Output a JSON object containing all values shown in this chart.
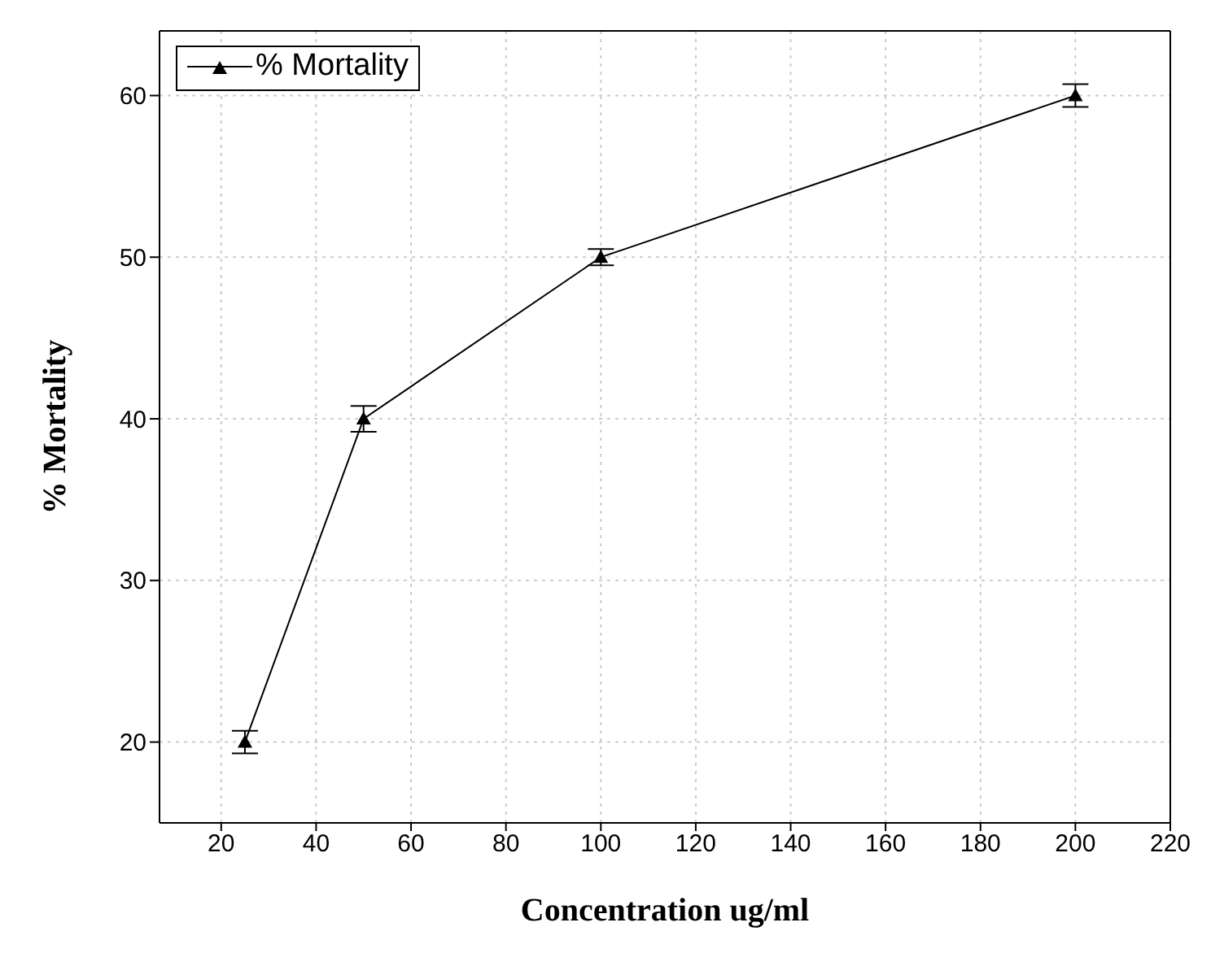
{
  "chart_data": {
    "type": "line",
    "xlabel": "Concentration ug/ml",
    "ylabel": "% Mortality",
    "x": [
      25,
      50,
      100,
      200
    ],
    "series": [
      {
        "name": "% Mortality",
        "color": "#000000",
        "values": [
          20,
          40,
          50,
          60
        ],
        "errors": [
          0.7,
          0.8,
          0.5,
          0.7
        ]
      }
    ],
    "xlim": [
      7,
      220
    ],
    "xticks": [
      20,
      40,
      60,
      80,
      100,
      120,
      140,
      160,
      180,
      200,
      220
    ],
    "ylim": [
      15,
      64
    ],
    "yticks": [
      20,
      30,
      40,
      50,
      60
    ],
    "grid": true,
    "legend": "top left",
    "marker": "triangle",
    "line_style": "solid"
  }
}
